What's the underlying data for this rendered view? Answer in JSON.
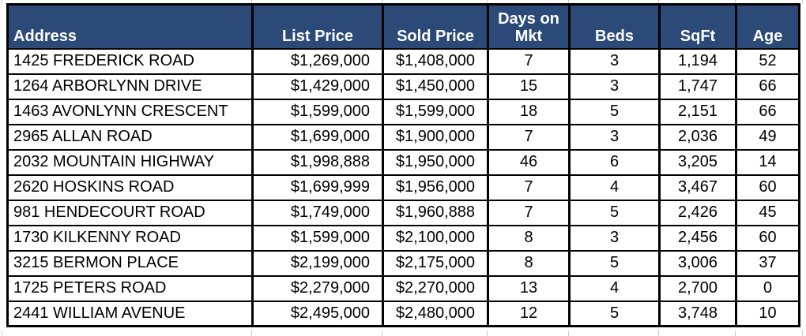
{
  "colors": {
    "header_bg": "#2B4A77",
    "header_text": "#FFFFFF",
    "cell_bg": "#FFFFFF",
    "cell_text": "#000000",
    "table_border": "#000000",
    "sheet_gridline": "#C9C9C9"
  },
  "table": {
    "headers": [
      "Address",
      "List Price",
      "Sold Price",
      "Days on Mkt",
      "Beds",
      "SqFt",
      "Age"
    ],
    "column_aligns": [
      "left",
      "right",
      "right",
      "center",
      "center",
      "center",
      "center"
    ],
    "rows": [
      [
        "1425 FREDERICK ROAD",
        "$1,269,000",
        "$1,408,000",
        "7",
        "3",
        "1,194",
        "52"
      ],
      [
        "1264 ARBORLYNN DRIVE",
        "$1,429,000",
        "$1,450,000",
        "15",
        "3",
        "1,747",
        "66"
      ],
      [
        "1463 AVONLYNN CRESCENT",
        "$1,599,000",
        "$1,599,000",
        "18",
        "5",
        "2,151",
        "66"
      ],
      [
        "2965 ALLAN ROAD",
        "$1,699,000",
        "$1,900,000",
        "7",
        "3",
        "2,036",
        "49"
      ],
      [
        "2032 MOUNTAIN HIGHWAY",
        "$1,998,888",
        "$1,950,000",
        "46",
        "6",
        "3,205",
        "14"
      ],
      [
        "2620 HOSKINS ROAD",
        "$1,699,999",
        "$1,956,000",
        "7",
        "4",
        "3,467",
        "60"
      ],
      [
        "981 HENDECOURT ROAD",
        "$1,749,000",
        "$1,960,888",
        "7",
        "5",
        "2,426",
        "45"
      ],
      [
        "1730 KILKENNY ROAD",
        "$1,599,000",
        "$2,100,000",
        "8",
        "3",
        "2,456",
        "60"
      ],
      [
        "3215 BERMON PLACE",
        "$2,199,000",
        "$2,175,000",
        "8",
        "5",
        "3,006",
        "37"
      ],
      [
        "1725 PETERS ROAD",
        "$2,279,000",
        "$2,270,000",
        "13",
        "4",
        "2,700",
        "0"
      ],
      [
        "2441 WILLIAM AVENUE",
        "$2,495,000",
        "$2,480,000",
        "12",
        "5",
        "3,748",
        "10"
      ]
    ]
  }
}
